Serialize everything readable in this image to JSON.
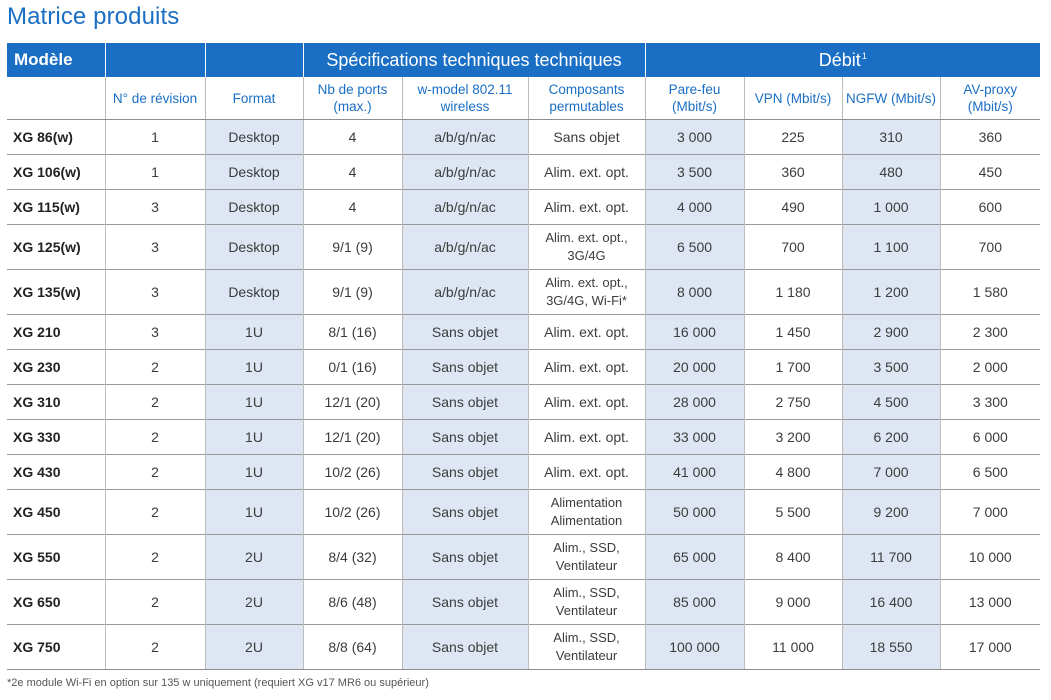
{
  "title": "Matrice produits",
  "header": {
    "model": "Modèle",
    "specs": "Spécifications techniques techniques",
    "throughput": "Débit",
    "throughput_note": "1",
    "revision": "N° de révision",
    "format": "Format",
    "ports": "Nb de ports (max.)",
    "wifi": "w-model 802.11 wireless",
    "components": "Composants permutables",
    "firewall": "Pare-feu (Mbit/s)",
    "vpn": "VPN (Mbit/s)",
    "ngfw": "NGFW (Mbit/s)",
    "avproxy": "AV-proxy (Mbit/s)"
  },
  "rows": [
    {
      "model": "XG 86(w)",
      "rev": "1",
      "format": "Desktop",
      "ports": "4",
      "wifi": "a/b/g/n/ac",
      "comp": "Sans objet",
      "fw": "3 000",
      "vpn": "225",
      "ngfw": "310",
      "av": "360"
    },
    {
      "model": "XG 106(w)",
      "rev": "1",
      "format": "Desktop",
      "ports": "4",
      "wifi": "a/b/g/n/ac",
      "comp": "Alim. ext. opt.",
      "fw": "3 500",
      "vpn": "360",
      "ngfw": "480",
      "av": "450"
    },
    {
      "model": "XG 115(w)",
      "rev": "3",
      "format": "Desktop",
      "ports": "4",
      "wifi": "a/b/g/n/ac",
      "comp": "Alim. ext. opt.",
      "fw": "4 000",
      "vpn": "490",
      "ngfw": "1 000",
      "av": "600"
    },
    {
      "model": "XG 125(w)",
      "rev": "3",
      "format": "Desktop",
      "ports": "9/1 (9)",
      "wifi": "a/b/g/n/ac",
      "comp": "Alim. ext. opt., 3G/4G",
      "fw": "6 500",
      "vpn": "700",
      "ngfw": "1 100",
      "av": "700"
    },
    {
      "model": "XG 135(w)",
      "rev": "3",
      "format": "Desktop",
      "ports": "9/1 (9)",
      "wifi": "a/b/g/n/ac",
      "comp": "Alim. ext. opt., 3G/4G, Wi-Fi*",
      "fw": "8 000",
      "vpn": "1 180",
      "ngfw": "1 200",
      "av": "1 580"
    },
    {
      "model": "XG 210",
      "rev": "3",
      "format": "1U",
      "ports": "8/1 (16)",
      "wifi": "Sans objet",
      "comp": "Alim. ext. opt.",
      "fw": "16 000",
      "vpn": "1 450",
      "ngfw": "2 900",
      "av": "2 300"
    },
    {
      "model": "XG 230",
      "rev": "2",
      "format": "1U",
      "ports": "0/1 (16)",
      "wifi": "Sans objet",
      "comp": "Alim. ext. opt.",
      "fw": "20 000",
      "vpn": "1 700",
      "ngfw": "3 500",
      "av": "2 000"
    },
    {
      "model": "XG 310",
      "rev": "2",
      "format": "1U",
      "ports": "12/1 (20)",
      "wifi": "Sans objet",
      "comp": "Alim. ext. opt.",
      "fw": "28 000",
      "vpn": "2 750",
      "ngfw": "4 500",
      "av": "3 300"
    },
    {
      "model": "XG 330",
      "rev": "2",
      "format": "1U",
      "ports": "12/1 (20)",
      "wifi": "Sans objet",
      "comp": "Alim. ext. opt.",
      "fw": "33 000",
      "vpn": "3 200",
      "ngfw": "6 200",
      "av": "6 000"
    },
    {
      "model": "XG 430",
      "rev": "2",
      "format": "1U",
      "ports": "10/2 (26)",
      "wifi": "Sans objet",
      "comp": "Alim. ext. opt.",
      "fw": "41 000",
      "vpn": "4 800",
      "ngfw": "7 000",
      "av": "6 500"
    },
    {
      "model": "XG 450",
      "rev": "2",
      "format": "1U",
      "ports": "10/2 (26)",
      "wifi": "Sans objet",
      "comp": "Alimentation Alimentation",
      "fw": "50 000",
      "vpn": "5 500",
      "ngfw": "9 200",
      "av": "7 000"
    },
    {
      "model": "XG 550",
      "rev": "2",
      "format": "2U",
      "ports": "8/4 (32)",
      "wifi": "Sans objet",
      "comp": "Alim., SSD, Ventilateur",
      "fw": "65 000",
      "vpn": "8 400",
      "ngfw": "11 700",
      "av": "10 000"
    },
    {
      "model": "XG 650",
      "rev": "2",
      "format": "2U",
      "ports": "8/6 (48)",
      "wifi": "Sans objet",
      "comp": "Alim., SSD, Ventilateur",
      "fw": "85 000",
      "vpn": "9 000",
      "ngfw": "16 400",
      "av": "13 000"
    },
    {
      "model": "XG 750",
      "rev": "2",
      "format": "2U",
      "ports": "8/8 (64)",
      "wifi": "Sans objet",
      "comp": "Alim., SSD, Ventilateur",
      "fw": "100 000",
      "vpn": "11 000",
      "ngfw": "18 550",
      "av": "17 000"
    }
  ],
  "footnote": "*2e module Wi-Fi en option sur 135 w uniquement (requiert XG v17 MR6 ou supérieur)",
  "colors": {
    "accent": "#1a6fc4",
    "shade": "#dde6f2",
    "text": "#3c3c3c"
  }
}
